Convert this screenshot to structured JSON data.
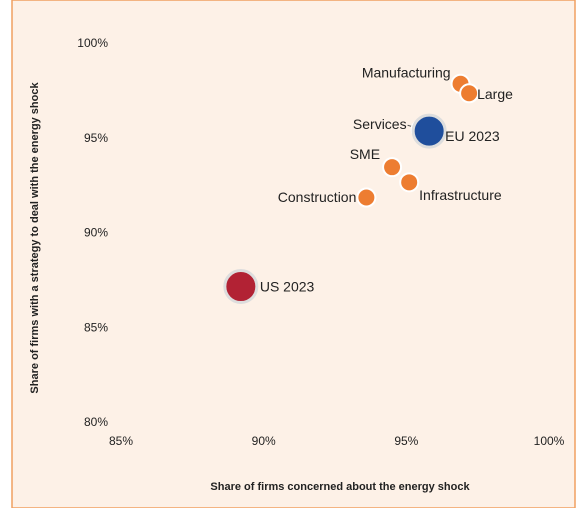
{
  "chart_data": {
    "type": "scatter",
    "xlabel": "Share of firms concerned about the energy shock",
    "ylabel": "Share of firms  with a  strategy to deal with the energy shock",
    "labels": [
      "Manufacturing",
      "Large",
      "Services",
      "EU 2023",
      "SME",
      "Infrastructure",
      "Construction",
      "US 2023"
    ],
    "x": [
      96.9,
      97.2,
      95.5,
      95.8,
      94.5,
      95.1,
      93.6,
      89.2
    ],
    "y": [
      97.9,
      97.4,
      95.5,
      95.4,
      93.5,
      92.7,
      91.9,
      87.2
    ],
    "colors": [
      "#ed7d31",
      "#ed7d31",
      "#ed7d31",
      "#1f4e9c",
      "#ed7d31",
      "#ed7d31",
      "#ed7d31",
      "#b22234"
    ],
    "xlim": [
      85,
      100
    ],
    "xticks": [
      {
        "value": 85,
        "label": "85%"
      },
      {
        "value": 90,
        "label": "90%"
      },
      {
        "value": 95,
        "label": "95%"
      },
      {
        "value": 100,
        "label": "100%"
      }
    ],
    "ylim": [
      80,
      100
    ],
    "yticks": [
      {
        "value": 80,
        "label": "80%"
      },
      {
        "value": 85,
        "label": "85%"
      },
      {
        "value": 90,
        "label": "90%"
      },
      {
        "value": 95,
        "label": "95%"
      },
      {
        "value": 100,
        "label": "100%"
      }
    ],
    "grid": false
  }
}
